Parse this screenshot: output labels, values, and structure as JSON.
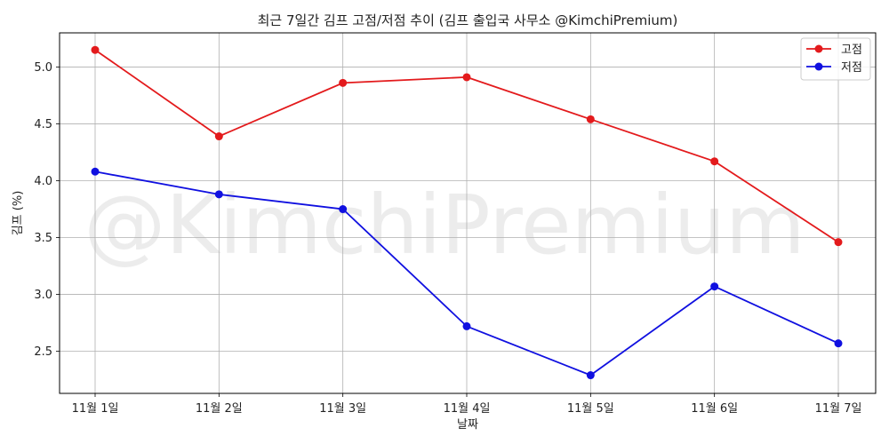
{
  "chart_data": {
    "type": "line",
    "title": "최근 7일간 김프 고점/저점 추이 (김프 출입국 사무소 @KimchiPremium)",
    "xlabel": "날짜",
    "ylabel": "김프 (%)",
    "categories": [
      "11월 1일",
      "11월 2일",
      "11월 3일",
      "11월 4일",
      "11월 5일",
      "11월 6일",
      "11월 7일"
    ],
    "series": [
      {
        "name": "고점",
        "color": "#e31a1c",
        "values": [
          5.15,
          4.39,
          4.86,
          4.91,
          4.54,
          4.17,
          3.46
        ]
      },
      {
        "name": "저점",
        "color": "#1010e0",
        "values": [
          4.08,
          3.88,
          3.75,
          2.72,
          2.29,
          3.07,
          2.57
        ]
      }
    ],
    "ylim": [
      2.13,
      5.3
    ],
    "yticks": [
      2.5,
      3.0,
      3.5,
      4.0,
      4.5,
      5.0
    ],
    "ytick_labels": [
      "2.5",
      "3.0",
      "3.5",
      "4.0",
      "4.5",
      "5.0"
    ],
    "grid": true,
    "legend_position": "top-right",
    "watermark": "@KimchiPremium"
  }
}
